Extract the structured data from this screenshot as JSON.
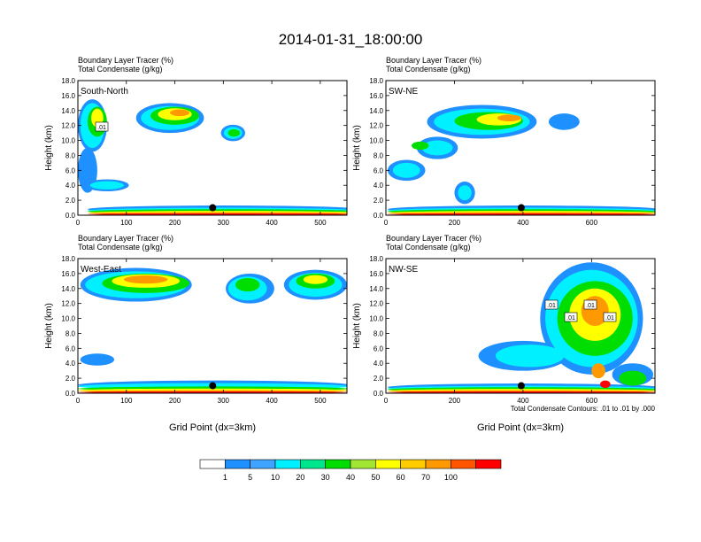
{
  "page": {
    "title": "2014-01-31_18:00:00",
    "xlabel": "Grid Point (dx=3km)",
    "contour_note": "Total Condensate Contours: .01 to .01 by .000"
  },
  "panels": [
    {
      "name": "South-North",
      "title_line1": "Boundary Layer Tracer   (%)",
      "title_line2": "Total Condensate   (g/kg)",
      "xlim": [
        0,
        555
      ],
      "xticks": [
        0,
        100,
        200,
        300,
        400,
        500
      ],
      "xticklabels": [
        "0",
        "100",
        "200",
        "300",
        "400",
        "500"
      ],
      "ylim": [
        0,
        18
      ],
      "yticks": [
        0,
        2,
        4,
        6,
        8,
        10,
        12,
        14,
        16,
        18
      ],
      "yticklabels": [
        "0.0",
        "2.0",
        "4.0",
        "6.0",
        "8.0",
        "10.0",
        "12.0",
        "14.0",
        "16.0",
        "18.0"
      ],
      "ylabel": "Height (km)",
      "contour_labels": [
        ".01"
      ],
      "marker": {
        "x": 278,
        "y": 1.0
      }
    },
    {
      "name": "SW-NE",
      "title_line1": "Boundary Layer Tracer   (%)",
      "title_line2": "Total Condensate   (g/kg)",
      "xlim": [
        0,
        785
      ],
      "xticks": [
        0,
        200,
        400,
        600
      ],
      "xticklabels": [
        "0",
        "200",
        "400",
        "600"
      ],
      "ylim": [
        0,
        18
      ],
      "yticks": [
        0,
        2,
        4,
        6,
        8,
        10,
        12,
        14,
        16,
        18
      ],
      "yticklabels": [
        "0.0",
        "2.0",
        "4.0",
        "6.0",
        "8.0",
        "10.0",
        "12.0",
        "14.0",
        "16.0",
        "18.0"
      ],
      "ylabel": "Height (km)",
      "contour_labels": [],
      "marker": {
        "x": 395,
        "y": 1.0
      }
    },
    {
      "name": "West-East",
      "title_line1": "Boundary Layer Tracer   (%)",
      "title_line2": "Total Condensate   (g/kg)",
      "xlim": [
        0,
        555
      ],
      "xticks": [
        0,
        100,
        200,
        300,
        400,
        500
      ],
      "xticklabels": [
        "0",
        "100",
        "200",
        "300",
        "400",
        "500"
      ],
      "ylim": [
        0,
        18
      ],
      "yticks": [
        0,
        2,
        4,
        6,
        8,
        10,
        12,
        14,
        16,
        18
      ],
      "yticklabels": [
        "0.0",
        "2.0",
        "4.0",
        "6.0",
        "8.0",
        "10.0",
        "12.0",
        "14.0",
        "16.0",
        "18.0"
      ],
      "ylabel": "Height (km)",
      "contour_labels": [],
      "marker": {
        "x": 278,
        "y": 1.0
      }
    },
    {
      "name": "NW-SE",
      "title_line1": "Boundary Layer Tracer   (%)",
      "title_line2": "Total Condensate   (g/kg)",
      "xlim": [
        0,
        785
      ],
      "xticks": [
        0,
        200,
        400,
        600
      ],
      "xticklabels": [
        "0",
        "200",
        "400",
        "600"
      ],
      "ylim": [
        0,
        18
      ],
      "yticks": [
        0,
        2,
        4,
        6,
        8,
        10,
        12,
        14,
        16,
        18
      ],
      "yticklabels": [
        "0.0",
        "2.0",
        "4.0",
        "6.0",
        "8.0",
        "10.0",
        "12.0",
        "14.0",
        "16.0",
        "18.0"
      ],
      "ylabel": "Height (km)",
      "contour_labels": [
        ".01",
        ".01",
        ".01",
        ".01"
      ],
      "marker": {
        "x": 395,
        "y": 1.0
      }
    }
  ],
  "colorbar": {
    "labels": [
      "1",
      "5",
      "10",
      "20",
      "30",
      "40",
      "50",
      "60",
      "70",
      "100"
    ],
    "colors": [
      "#ffffff",
      "#1e90ff",
      "#3fa4ff",
      "#00f0ff",
      "#00e68c",
      "#00dd00",
      "#a0e632",
      "#ffff00",
      "#ffcc00",
      "#ff9900",
      "#ff5500",
      "#ff0000"
    ]
  },
  "chart_data": [
    {
      "type": "heatmap",
      "title": "2014-01-31_18:00:00 South-North",
      "xlabel": "",
      "ylabel": "Height (km)",
      "xlim": [
        0,
        555
      ],
      "ylim": [
        0,
        18
      ],
      "layers": [
        {
          "level": 1,
          "blobs": [
            [
              30,
              12,
              60,
              7
            ],
            [
              190,
              13,
              140,
              4
            ],
            [
              320,
              11,
              50,
              2.2
            ],
            [
              60,
              4,
              90,
              1.6
            ],
            [
              300,
              0.8,
              560,
              1.0
            ],
            [
              20,
              6,
              40,
              6
            ]
          ]
        },
        {
          "level": 5,
          "blobs": [
            [
              30,
              12,
              50,
              6
            ],
            [
              190,
              13,
              120,
              3.2
            ],
            [
              320,
              11,
              38,
              1.6
            ],
            [
              60,
              4,
              70,
              1.1
            ],
            [
              300,
              0.6,
              560,
              0.8
            ]
          ]
        },
        {
          "level": 20,
          "blobs": [
            [
              40,
              12.5,
              40,
              4
            ],
            [
              200,
              13.3,
              100,
              2.4
            ],
            [
              322,
              11,
              25,
              1.0
            ],
            [
              300,
              0.5,
              560,
              0.6
            ]
          ]
        },
        {
          "level": 40,
          "blobs": [
            [
              200,
              13.5,
              70,
              1.6
            ],
            [
              40,
              13,
              25,
              2.5
            ],
            [
              300,
              0.35,
              560,
              0.45
            ]
          ]
        },
        {
          "level": 60,
          "blobs": [
            [
              210,
              13.7,
              40,
              0.9
            ],
            [
              300,
              0.25,
              560,
              0.3
            ]
          ]
        },
        {
          "level": 100,
          "blobs": [
            [
              300,
              0.12,
              560,
              0.15
            ]
          ]
        }
      ]
    },
    {
      "type": "heatmap",
      "title": "2014-01-31_18:00:00 SW-NE",
      "xlabel": "",
      "ylabel": "Height (km)",
      "xlim": [
        0,
        785
      ],
      "ylim": [
        0,
        18
      ],
      "layers": [
        {
          "level": 1,
          "blobs": [
            [
              280,
              12.5,
              320,
              4.5
            ],
            [
              150,
              9,
              120,
              3
            ],
            [
              230,
              3,
              60,
              3
            ],
            [
              60,
              6,
              110,
              2.8
            ],
            [
              400,
              0.8,
              790,
              1.0
            ],
            [
              520,
              12.5,
              90,
              2.2
            ]
          ]
        },
        {
          "level": 5,
          "blobs": [
            [
              280,
              12.5,
              280,
              3.5
            ],
            [
              150,
              9,
              90,
              2
            ],
            [
              230,
              3,
              40,
              2
            ],
            [
              60,
              6,
              80,
              2
            ],
            [
              400,
              0.6,
              790,
              0.8
            ]
          ]
        },
        {
          "level": 20,
          "blobs": [
            [
              300,
              12.6,
              200,
              2.4
            ],
            [
              100,
              9.3,
              50,
              1.1
            ],
            [
              400,
              0.5,
              790,
              0.6
            ]
          ]
        },
        {
          "level": 40,
          "blobs": [
            [
              330,
              12.8,
              130,
              1.6
            ],
            [
              400,
              0.35,
              790,
              0.45
            ]
          ]
        },
        {
          "level": 60,
          "blobs": [
            [
              360,
              13,
              70,
              0.9
            ],
            [
              400,
              0.25,
              790,
              0.3
            ]
          ]
        },
        {
          "level": 100,
          "blobs": [
            [
              400,
              0.12,
              790,
              0.15
            ]
          ]
        }
      ]
    },
    {
      "type": "heatmap",
      "title": "2014-01-31_18:00:00 West-East",
      "xlabel": "",
      "ylabel": "Height (km)",
      "xlim": [
        0,
        555
      ],
      "ylim": [
        0,
        18
      ],
      "layers": [
        {
          "level": 1,
          "blobs": [
            [
              120,
              14.5,
              230,
              4.5
            ],
            [
              355,
              14,
              100,
              4
            ],
            [
              490,
              14.5,
              130,
              4
            ],
            [
              40,
              4.5,
              70,
              1.6
            ],
            [
              280,
              1.1,
              560,
              1.2
            ]
          ]
        },
        {
          "level": 5,
          "blobs": [
            [
              120,
              14.5,
              210,
              3.6
            ],
            [
              350,
              14,
              80,
              3.2
            ],
            [
              490,
              14.5,
              110,
              3.2
            ],
            [
              280,
              0.9,
              560,
              0.9
            ]
          ]
        },
        {
          "level": 20,
          "blobs": [
            [
              140,
              14.7,
              180,
              2.6
            ],
            [
              490,
              15,
              80,
              2
            ],
            [
              350,
              14.5,
              50,
              1.8
            ],
            [
              280,
              0.6,
              560,
              0.6
            ]
          ]
        },
        {
          "level": 40,
          "blobs": [
            [
              140,
              15,
              140,
              1.8
            ],
            [
              490,
              15.2,
              50,
              1.2
            ],
            [
              280,
              0.4,
              560,
              0.45
            ]
          ]
        },
        {
          "level": 60,
          "blobs": [
            [
              140,
              15.2,
              90,
              1.1
            ],
            [
              280,
              0.25,
              560,
              0.3
            ]
          ]
        },
        {
          "level": 100,
          "blobs": [
            [
              280,
              0.12,
              560,
              0.15
            ]
          ]
        }
      ]
    },
    {
      "type": "heatmap",
      "title": "2014-01-31_18:00:00 NW-SE",
      "xlabel": "Grid Point (dx=3km)",
      "ylabel": "Height (km)",
      "xlim": [
        0,
        785
      ],
      "ylim": [
        0,
        18
      ],
      "layers": [
        {
          "level": 1,
          "blobs": [
            [
              600,
              10,
              300,
              15
            ],
            [
              400,
              5,
              260,
              4
            ],
            [
              560,
              9.5,
              60,
              2
            ],
            [
              400,
              0.8,
              790,
              1.0
            ],
            [
              720,
              2.5,
              120,
              3
            ]
          ]
        },
        {
          "level": 5,
          "blobs": [
            [
              600,
              10,
              270,
              13
            ],
            [
              420,
              5,
              200,
              3
            ],
            [
              400,
              0.6,
              790,
              0.8
            ]
          ]
        },
        {
          "level": 20,
          "blobs": [
            [
              610,
              10,
              220,
              10
            ],
            [
              400,
              0.5,
              790,
              0.6
            ],
            [
              720,
              2,
              80,
              2
            ]
          ]
        },
        {
          "level": 40,
          "blobs": [
            [
              610,
              10.5,
              150,
              7
            ],
            [
              400,
              0.35,
              790,
              0.45
            ]
          ]
        },
        {
          "level": 60,
          "blobs": [
            [
              610,
              11,
              80,
              4
            ],
            [
              620,
              3,
              40,
              2
            ],
            [
              400,
              0.25,
              790,
              0.3
            ]
          ]
        },
        {
          "level": 100,
          "blobs": [
            [
              400,
              0.12,
              790,
              0.15
            ],
            [
              640,
              1.2,
              30,
              1
            ]
          ]
        }
      ]
    }
  ]
}
